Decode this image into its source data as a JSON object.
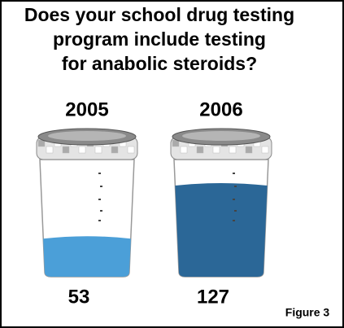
{
  "chart_data": {
    "type": "cup",
    "title": [
      "Does your school drug testing",
      "program include testing",
      "for anabolic steroids?"
    ],
    "categories": [
      "2005",
      "2006"
    ],
    "values": [
      53,
      127
    ],
    "colors": [
      "#4b9fd8",
      "#2b6797"
    ],
    "figure_label": "Figure 3"
  }
}
